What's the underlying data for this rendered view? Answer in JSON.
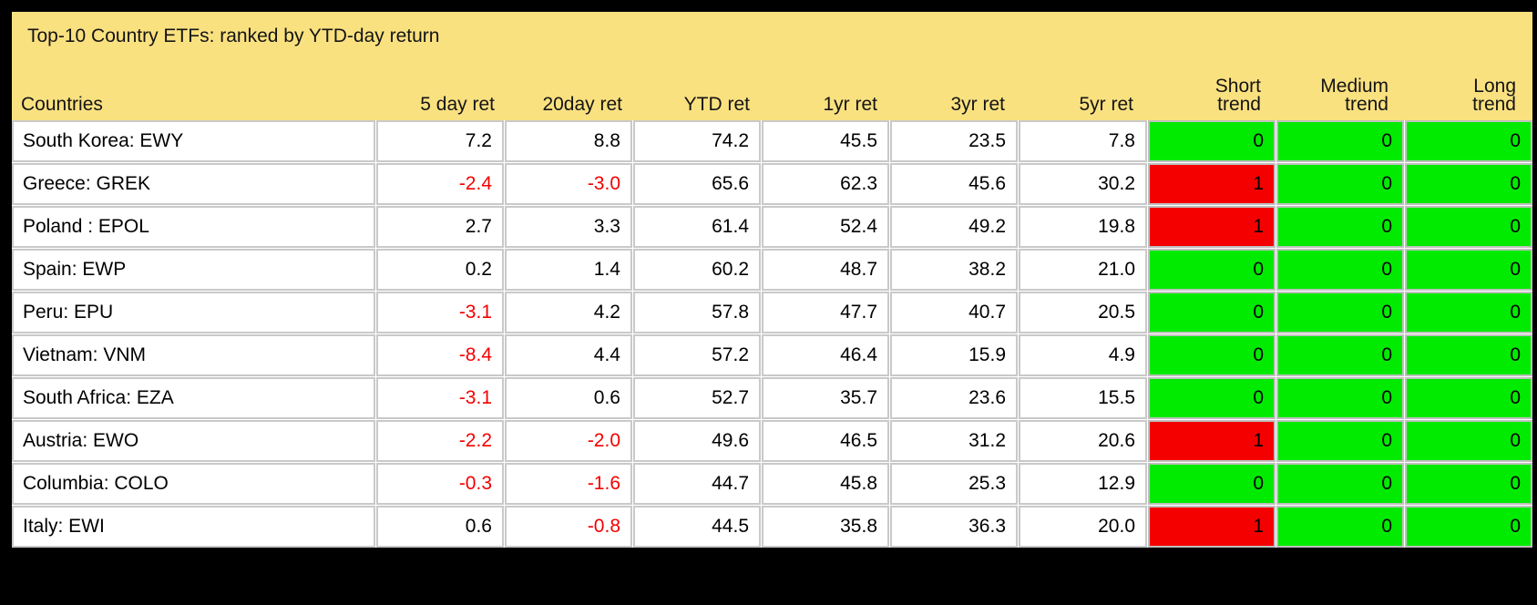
{
  "title": "Top-10 Country ETFs: ranked by YTD-day return",
  "table": {
    "columns": [
      {
        "key": "country",
        "label": "Countries"
      },
      {
        "key": "r5d",
        "label": "5 day ret"
      },
      {
        "key": "r20d",
        "label": "20day ret"
      },
      {
        "key": "ytd",
        "label": "YTD ret"
      },
      {
        "key": "r1y",
        "label": "1yr ret"
      },
      {
        "key": "r3y",
        "label": "3yr ret"
      },
      {
        "key": "r5y",
        "label": "5yr ret"
      },
      {
        "key": "short",
        "label": "Short\ntrend"
      },
      {
        "key": "medium",
        "label": "Medium\ntrend"
      },
      {
        "key": "long",
        "label": "Long\ntrend"
      }
    ],
    "trend_keys": [
      "short",
      "medium",
      "long"
    ],
    "rows": [
      {
        "country": "South Korea: EWY",
        "r5d": "7.2",
        "r20d": "8.8",
        "ytd": "74.2",
        "r1y": "45.5",
        "r3y": "23.5",
        "r5y": "7.8",
        "short": "0",
        "medium": "0",
        "long": "0"
      },
      {
        "country": "Greece: GREK",
        "r5d": "-2.4",
        "r20d": "-3.0",
        "ytd": "65.6",
        "r1y": "62.3",
        "r3y": "45.6",
        "r5y": "30.2",
        "short": "1",
        "medium": "0",
        "long": "0"
      },
      {
        "country": "Poland : EPOL",
        "r5d": "2.7",
        "r20d": "3.3",
        "ytd": "61.4",
        "r1y": "52.4",
        "r3y": "49.2",
        "r5y": "19.8",
        "short": "1",
        "medium": "0",
        "long": "0"
      },
      {
        "country": "Spain: EWP",
        "r5d": "0.2",
        "r20d": "1.4",
        "ytd": "60.2",
        "r1y": "48.7",
        "r3y": "38.2",
        "r5y": "21.0",
        "short": "0",
        "medium": "0",
        "long": "0"
      },
      {
        "country": "Peru: EPU",
        "r5d": "-3.1",
        "r20d": "4.2",
        "ytd": "57.8",
        "r1y": "47.7",
        "r3y": "40.7",
        "r5y": "20.5",
        "short": "0",
        "medium": "0",
        "long": "0"
      },
      {
        "country": "Vietnam: VNM",
        "r5d": "-8.4",
        "r20d": "4.4",
        "ytd": "57.2",
        "r1y": "46.4",
        "r3y": "15.9",
        "r5y": "4.9",
        "short": "0",
        "medium": "0",
        "long": "0"
      },
      {
        "country": "South Africa: EZA",
        "r5d": "-3.1",
        "r20d": "0.6",
        "ytd": "52.7",
        "r1y": "35.7",
        "r3y": "23.6",
        "r5y": "15.5",
        "short": "0",
        "medium": "0",
        "long": "0"
      },
      {
        "country": "Austria: EWO",
        "r5d": "-2.2",
        "r20d": "-2.0",
        "ytd": "49.6",
        "r1y": "46.5",
        "r3y": "31.2",
        "r5y": "20.6",
        "short": "1",
        "medium": "0",
        "long": "0"
      },
      {
        "country": "Columbia: COLO",
        "r5d": "-0.3",
        "r20d": "-1.6",
        "ytd": "44.7",
        "r1y": "45.8",
        "r3y": "25.3",
        "r5y": "12.9",
        "short": "0",
        "medium": "0",
        "long": "0"
      },
      {
        "country": "Italy: EWI",
        "r5d": "0.6",
        "r20d": "-0.8",
        "ytd": "44.5",
        "r1y": "35.8",
        "r3y": "36.3",
        "r5y": "20.0",
        "short": "1",
        "medium": "0",
        "long": "0"
      }
    ],
    "trend_values": {
      "flat": "0",
      "flagged": "1"
    }
  },
  "colors": {
    "canvas_bg": "#000000",
    "header_bg": "#FAE180",
    "trend_up_bg": "#00EB00",
    "trend_down_bg": "#F50000",
    "negative_text": "#F40000"
  }
}
